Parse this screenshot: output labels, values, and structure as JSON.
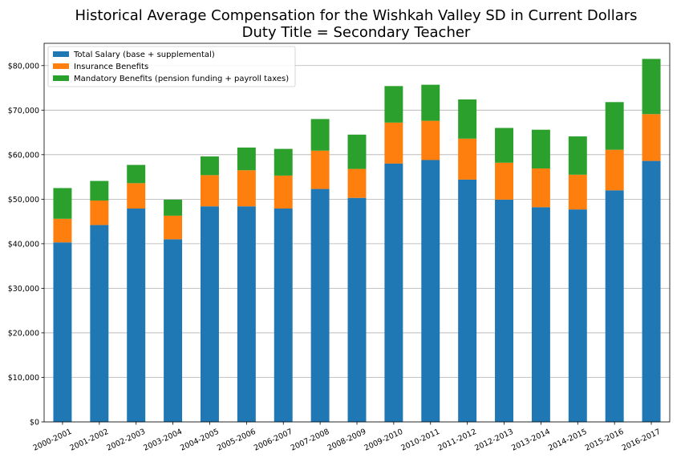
{
  "chart_data": {
    "type": "bar",
    "stacked": true,
    "title": "Historical Average Compensation for the Wishkah Valley SD in Current Dollars",
    "subtitle": "Duty Title = Secondary Teacher",
    "xlabel": "",
    "ylabel": "",
    "ylim": [
      0,
      85000
    ],
    "y_ticks": [
      "$0",
      "$10,000",
      "$20,000",
      "$30,000",
      "$40,000",
      "$50,000",
      "$60,000",
      "$70,000",
      "$80,000"
    ],
    "y_tick_values": [
      0,
      10000,
      20000,
      30000,
      40000,
      50000,
      60000,
      70000,
      80000
    ],
    "grid": "y",
    "legend_position": "top-left",
    "categories": [
      "2000-2001",
      "2001-2002",
      "2002-2003",
      "2003-2004",
      "2004-2005",
      "2005-2006",
      "2006-2007",
      "2007-2008",
      "2008-2009",
      "2009-2010",
      "2010-2011",
      "2011-2012",
      "2012-2013",
      "2013-2014",
      "2014-2015",
      "2015-2016",
      "2016-2017"
    ],
    "series": [
      {
        "name": "Total Salary (base + supplemental)",
        "color": "#1f77b4",
        "values": [
          40300,
          44200,
          47900,
          41000,
          48400,
          48400,
          47900,
          52300,
          50300,
          58000,
          58800,
          54400,
          49900,
          48200,
          47700,
          52000,
          58600
        ]
      },
      {
        "name": "Insurance Benefits",
        "color": "#ff7f0e",
        "values": [
          5300,
          5500,
          5700,
          5300,
          7000,
          8100,
          7400,
          8600,
          6500,
          9200,
          8800,
          9200,
          8300,
          8700,
          7800,
          9100,
          10500
        ]
      },
      {
        "name": "Mandatory Benefits (pension funding + payroll taxes)",
        "color": "#2ca02c",
        "values": [
          6900,
          4400,
          4100,
          3600,
          4200,
          5100,
          6000,
          7100,
          7700,
          8200,
          8100,
          8800,
          7800,
          8700,
          8600,
          10700,
          12400
        ]
      }
    ]
  }
}
